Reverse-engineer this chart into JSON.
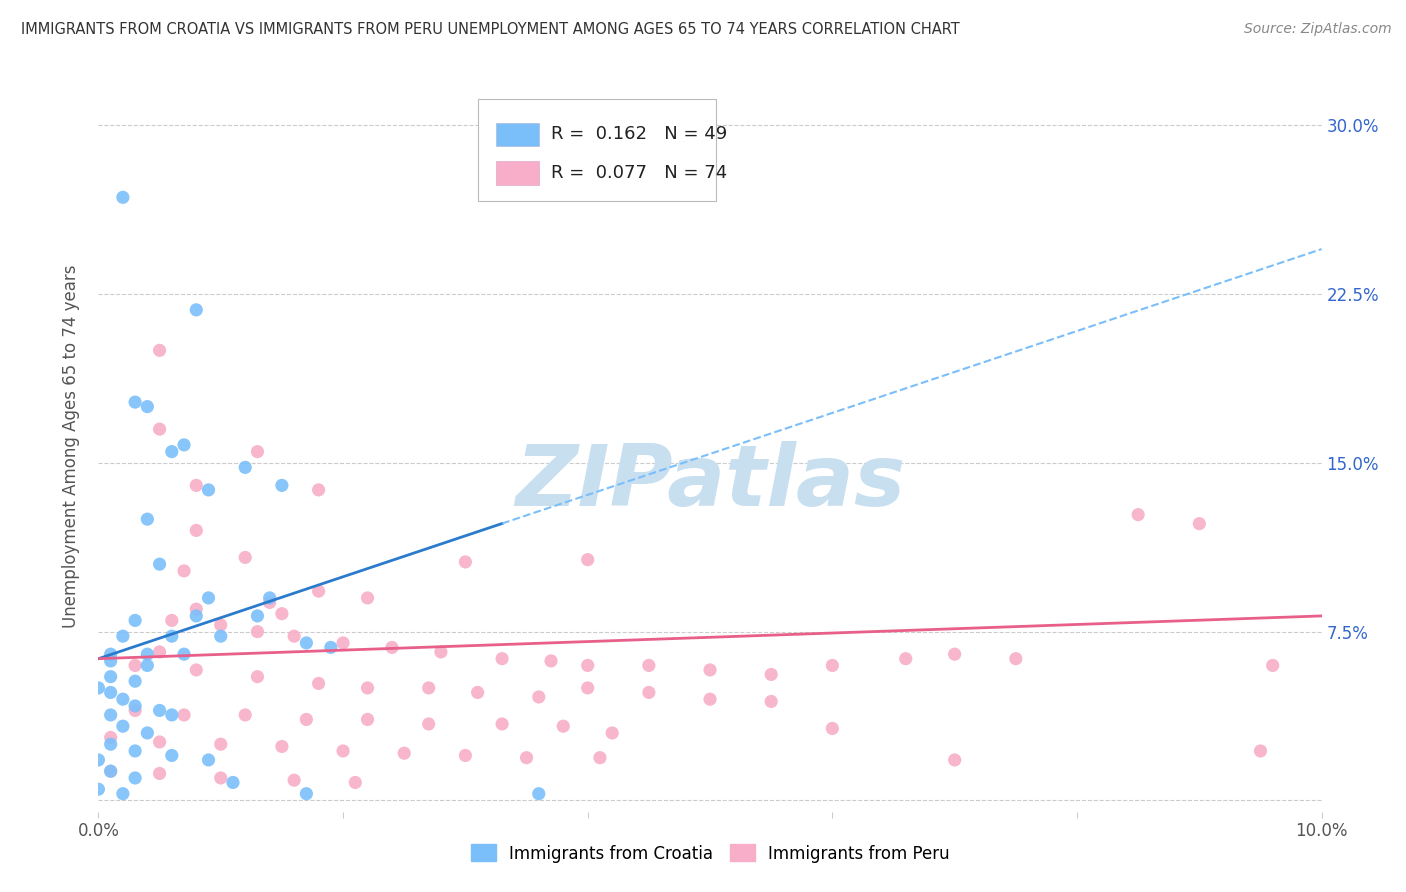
{
  "title": "IMMIGRANTS FROM CROATIA VS IMMIGRANTS FROM PERU UNEMPLOYMENT AMONG AGES 65 TO 74 YEARS CORRELATION CHART",
  "source": "Source: ZipAtlas.com",
  "ylabel": "Unemployment Among Ages 65 to 74 years",
  "xlim": [
    0.0,
    0.1
  ],
  "ylim": [
    -0.005,
    0.32
  ],
  "xticks": [
    0.0,
    0.02,
    0.04,
    0.06,
    0.08,
    0.1
  ],
  "xticklabels": [
    "0.0%",
    "",
    "",
    "",
    "",
    "10.0%"
  ],
  "ytick_positions": [
    0.0,
    0.075,
    0.15,
    0.225,
    0.3
  ],
  "ytick_labels_right": [
    "",
    "7.5%",
    "15.0%",
    "22.5%",
    "30.0%"
  ],
  "croatia_R": 0.162,
  "croatia_N": 49,
  "peru_R": 0.077,
  "peru_N": 74,
  "croatia_color": "#7bbffa",
  "peru_color": "#f8aec8",
  "croatia_line_color": "#2b7bcc",
  "peru_line_color": "#e8608a",
  "dashed_line_color": "#7bbffa",
  "croatia_line_x0": 0.0,
  "croatia_line_y0": 0.063,
  "croatia_line_x1": 0.1,
  "croatia_line_y1": 0.245,
  "croatia_solid_xend": 0.033,
  "peru_line_x0": 0.0,
  "peru_line_y0": 0.063,
  "peru_line_x1": 0.1,
  "peru_line_y1": 0.082,
  "watermark": "ZIPatlas",
  "watermark_color": "#c8dff0",
  "legend_labels": [
    "Immigrants from Croatia",
    "Immigrants from Peru"
  ],
  "croatia_scatter": [
    [
      0.002,
      0.268
    ],
    [
      0.008,
      0.218
    ],
    [
      0.003,
      0.177
    ],
    [
      0.006,
      0.155
    ],
    [
      0.012,
      0.148
    ],
    [
      0.009,
      0.138
    ],
    [
      0.004,
      0.125
    ],
    [
      0.007,
      0.158
    ],
    [
      0.004,
      0.175
    ],
    [
      0.009,
      0.09
    ],
    [
      0.005,
      0.105
    ],
    [
      0.015,
      0.14
    ],
    [
      0.014,
      0.09
    ],
    [
      0.003,
      0.08
    ],
    [
      0.008,
      0.082
    ],
    [
      0.013,
      0.082
    ],
    [
      0.017,
      0.07
    ],
    [
      0.002,
      0.073
    ],
    [
      0.006,
      0.073
    ],
    [
      0.01,
      0.073
    ],
    [
      0.019,
      0.068
    ],
    [
      0.001,
      0.065
    ],
    [
      0.004,
      0.065
    ],
    [
      0.007,
      0.065
    ],
    [
      0.001,
      0.062
    ],
    [
      0.004,
      0.06
    ],
    [
      0.001,
      0.055
    ],
    [
      0.003,
      0.053
    ],
    [
      0.0,
      0.05
    ],
    [
      0.001,
      0.048
    ],
    [
      0.002,
      0.045
    ],
    [
      0.003,
      0.042
    ],
    [
      0.005,
      0.04
    ],
    [
      0.001,
      0.038
    ],
    [
      0.006,
      0.038
    ],
    [
      0.002,
      0.033
    ],
    [
      0.004,
      0.03
    ],
    [
      0.001,
      0.025
    ],
    [
      0.003,
      0.022
    ],
    [
      0.006,
      0.02
    ],
    [
      0.009,
      0.018
    ],
    [
      0.0,
      0.018
    ],
    [
      0.001,
      0.013
    ],
    [
      0.003,
      0.01
    ],
    [
      0.011,
      0.008
    ],
    [
      0.0,
      0.005
    ],
    [
      0.002,
      0.003
    ],
    [
      0.017,
      0.003
    ],
    [
      0.036,
      0.003
    ]
  ],
  "peru_scatter": [
    [
      0.005,
      0.2
    ],
    [
      0.013,
      0.155
    ],
    [
      0.005,
      0.165
    ],
    [
      0.008,
      0.14
    ],
    [
      0.018,
      0.138
    ],
    [
      0.008,
      0.12
    ],
    [
      0.012,
      0.108
    ],
    [
      0.007,
      0.102
    ],
    [
      0.03,
      0.106
    ],
    [
      0.04,
      0.107
    ],
    [
      0.085,
      0.127
    ],
    [
      0.09,
      0.123
    ],
    [
      0.018,
      0.093
    ],
    [
      0.022,
      0.09
    ],
    [
      0.014,
      0.088
    ],
    [
      0.008,
      0.085
    ],
    [
      0.015,
      0.083
    ],
    [
      0.006,
      0.08
    ],
    [
      0.01,
      0.078
    ],
    [
      0.013,
      0.075
    ],
    [
      0.016,
      0.073
    ],
    [
      0.02,
      0.07
    ],
    [
      0.024,
      0.068
    ],
    [
      0.005,
      0.066
    ],
    [
      0.028,
      0.066
    ],
    [
      0.033,
      0.063
    ],
    [
      0.037,
      0.062
    ],
    [
      0.04,
      0.06
    ],
    [
      0.045,
      0.06
    ],
    [
      0.05,
      0.058
    ],
    [
      0.055,
      0.056
    ],
    [
      0.06,
      0.06
    ],
    [
      0.066,
      0.063
    ],
    [
      0.07,
      0.065
    ],
    [
      0.075,
      0.063
    ],
    [
      0.003,
      0.06
    ],
    [
      0.008,
      0.058
    ],
    [
      0.013,
      0.055
    ],
    [
      0.018,
      0.052
    ],
    [
      0.022,
      0.05
    ],
    [
      0.027,
      0.05
    ],
    [
      0.031,
      0.048
    ],
    [
      0.036,
      0.046
    ],
    [
      0.04,
      0.05
    ],
    [
      0.045,
      0.048
    ],
    [
      0.05,
      0.045
    ],
    [
      0.055,
      0.044
    ],
    [
      0.003,
      0.04
    ],
    [
      0.007,
      0.038
    ],
    [
      0.012,
      0.038
    ],
    [
      0.017,
      0.036
    ],
    [
      0.022,
      0.036
    ],
    [
      0.027,
      0.034
    ],
    [
      0.033,
      0.034
    ],
    [
      0.038,
      0.033
    ],
    [
      0.042,
      0.03
    ],
    [
      0.06,
      0.032
    ],
    [
      0.001,
      0.028
    ],
    [
      0.005,
      0.026
    ],
    [
      0.01,
      0.025
    ],
    [
      0.015,
      0.024
    ],
    [
      0.02,
      0.022
    ],
    [
      0.025,
      0.021
    ],
    [
      0.03,
      0.02
    ],
    [
      0.035,
      0.019
    ],
    [
      0.041,
      0.019
    ],
    [
      0.07,
      0.018
    ],
    [
      0.001,
      0.013
    ],
    [
      0.005,
      0.012
    ],
    [
      0.01,
      0.01
    ],
    [
      0.016,
      0.009
    ],
    [
      0.021,
      0.008
    ],
    [
      0.096,
      0.06
    ],
    [
      0.095,
      0.022
    ]
  ]
}
